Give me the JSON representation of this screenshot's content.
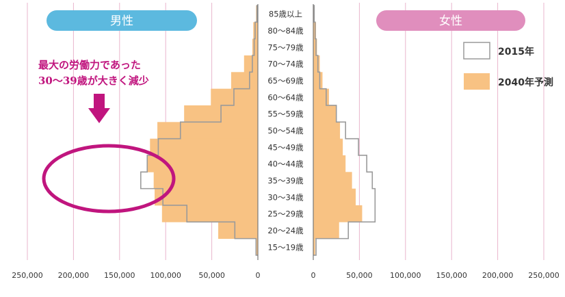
{
  "colors": {
    "male_pill": "#5cb9df",
    "female_pill": "#e08ebd",
    "bar_2040": "#f8c283",
    "outline_2015": "#9a9a9a",
    "grid": "#e9b5cc",
    "accent": "#c0157e"
  },
  "header": {
    "male_label": "男性",
    "female_label": "女性"
  },
  "annotation": {
    "line1": "最大の労働力であった",
    "line2": "30～39歳が大きく減少"
  },
  "chart_data": {
    "type": "bar",
    "orientation": "horizontal",
    "subtype": "population-pyramid",
    "title": "",
    "age_groups": [
      "85歳以上",
      "80～84歳",
      "75～79歳",
      "70～74歳",
      "65～69歳",
      "60～64歳",
      "55～59歳",
      "50～54歳",
      "45～49歳",
      "40～44歳",
      "35～39歳",
      "30～34歳",
      "25～29歳",
      "20～24歳",
      "15～19歳"
    ],
    "series": [
      {
        "name": "2015年",
        "style": "outline",
        "male": [
          1000,
          3000,
          4000,
          6000,
          9000,
          26000,
          40000,
          84000,
          108000,
          120000,
          127000,
          103000,
          77000,
          25000,
          2000
        ],
        "female": [
          1000,
          2000,
          3000,
          5000,
          7000,
          14000,
          25000,
          35000,
          49000,
          58000,
          64000,
          67000,
          67000,
          38000,
          3000
        ]
      },
      {
        "name": "2040年予測",
        "style": "filled",
        "male": [
          2000,
          5000,
          6000,
          15000,
          29000,
          51000,
          80000,
          109000,
          117000,
          120000,
          113000,
          112000,
          104000,
          43000,
          2000
        ],
        "female": [
          1000,
          3000,
          4000,
          7000,
          10000,
          17000,
          25000,
          29000,
          32000,
          35000,
          42000,
          46000,
          53000,
          28000,
          2000
        ]
      }
    ],
    "x_ticks_male": [
      "250,000",
      "200,000",
      "150,000",
      "100,000",
      "50,000",
      "0"
    ],
    "x_ticks_female": [
      "0",
      "50,000",
      "100,000",
      "150,000",
      "200,000",
      "250,000"
    ],
    "xlim": [
      0,
      250000
    ],
    "grid": true,
    "legend_position": "right"
  }
}
